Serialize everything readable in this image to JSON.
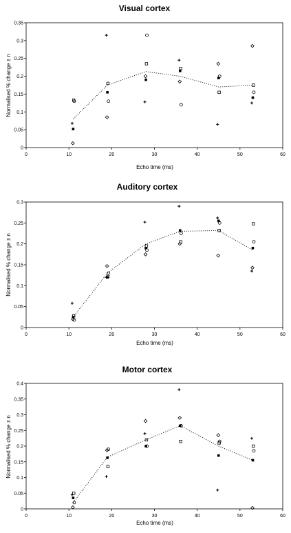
{
  "chart_data": [
    {
      "type": "scatter",
      "title": "Visual cortex",
      "xlabel": "Echo time (ms)",
      "ylabel": "Normalised % change ± n",
      "xlim": [
        0,
        60
      ],
      "ylim": [
        0,
        0.35
      ],
      "x_ticks": [
        "0",
        "10",
        "20",
        "30",
        "40",
        "50",
        "60"
      ],
      "y_ticks": [
        "0",
        "0.05",
        "0.1",
        "0.15",
        "0.2",
        "0.25",
        "0.3",
        "0.35"
      ],
      "grid": false,
      "series": [
        {
          "marker": "plus",
          "points": [
            [
              11,
              0.068
            ],
            [
              19,
              0.315
            ],
            [
              28,
              0.128
            ],
            [
              36,
              0.245
            ],
            [
              45,
              0.065
            ],
            [
              53,
              0.125
            ]
          ]
        },
        {
          "marker": "square",
          "points": [
            [
              11,
              0.052
            ],
            [
              19,
              0.155
            ],
            [
              28,
              0.19
            ],
            [
              36,
              0.215
            ],
            [
              45,
              0.195
            ],
            [
              53,
              0.14
            ]
          ]
        },
        {
          "marker": "circle",
          "points": [
            [
              11,
              0.13
            ],
            [
              19,
              0.13
            ],
            [
              28,
              0.315
            ],
            [
              36,
              0.12
            ],
            [
              45,
              0.2
            ],
            [
              53,
              0.155
            ]
          ]
        },
        {
          "marker": "diamond",
          "points": [
            [
              11,
              0.012
            ],
            [
              19,
              0.085
            ],
            [
              28,
              0.2
            ],
            [
              36,
              0.185
            ],
            [
              45,
              0.235
            ],
            [
              53,
              0.285
            ]
          ]
        },
        {
          "marker": "open-square",
          "points": [
            [
              11,
              0.133
            ],
            [
              19,
              0.18
            ],
            [
              28,
              0.235
            ],
            [
              36,
              0.222
            ],
            [
              45,
              0.155
            ],
            [
              53,
              0.175
            ]
          ]
        }
      ],
      "trend": {
        "style": "dotted",
        "points": [
          [
            11,
            0.08
          ],
          [
            19,
            0.175
          ],
          [
            28,
            0.213
          ],
          [
            36,
            0.2
          ],
          [
            45,
            0.17
          ],
          [
            53,
            0.175
          ]
        ]
      }
    },
    {
      "type": "scatter",
      "title": "Auditory cortex",
      "xlabel": "Echo time (ms)",
      "ylabel": "Normalised % change ± n",
      "xlim": [
        0,
        60
      ],
      "ylim": [
        0,
        0.3
      ],
      "x_ticks": [
        "0",
        "10",
        "20",
        "30",
        "40",
        "50",
        "60"
      ],
      "y_ticks": [
        "0",
        "0.05",
        "0.1",
        "0.15",
        "0.2",
        "0.25",
        "0.3"
      ],
      "grid": false,
      "series": [
        {
          "marker": "plus",
          "points": [
            [
              11,
              0.058
            ],
            [
              19,
              0.12
            ],
            [
              28,
              0.252
            ],
            [
              36,
              0.29
            ],
            [
              45,
              0.262
            ],
            [
              53,
              0.135
            ]
          ]
        },
        {
          "marker": "square",
          "points": [
            [
              11,
              0.025
            ],
            [
              19,
              0.12
            ],
            [
              28,
              0.19
            ],
            [
              36,
              0.232
            ],
            [
              45,
              0.255
            ],
            [
              53,
              0.19
            ]
          ]
        },
        {
          "marker": "circle",
          "points": [
            [
              11,
              0.018
            ],
            [
              19,
              0.13
            ],
            [
              28,
              0.185
            ],
            [
              36,
              0.225
            ],
            [
              45,
              0.25
            ],
            [
              53,
              0.205
            ]
          ]
        },
        {
          "marker": "diamond",
          "points": [
            [
              11,
              0.02
            ],
            [
              19,
              0.147
            ],
            [
              28,
              0.175
            ],
            [
              36,
              0.2
            ],
            [
              45,
              0.172
            ],
            [
              53,
              0.143
            ]
          ]
        },
        {
          "marker": "open-square",
          "points": [
            [
              11,
              0.028
            ],
            [
              19,
              0.122
            ],
            [
              28,
              0.195
            ],
            [
              36,
              0.205
            ],
            [
              45,
              0.232
            ],
            [
              53,
              0.248
            ]
          ]
        }
      ],
      "trend": {
        "style": "dotted",
        "points": [
          [
            11,
            0.025
          ],
          [
            19,
            0.13
          ],
          [
            28,
            0.2
          ],
          [
            36,
            0.23
          ],
          [
            45,
            0.232
          ],
          [
            53,
            0.185
          ]
        ]
      }
    },
    {
      "type": "scatter",
      "title": "Motor cortex",
      "xlabel": "Echo time (ms)",
      "ylabel": "Normalised % change ± n",
      "xlim": [
        0,
        60
      ],
      "ylim": [
        0,
        0.4
      ],
      "x_ticks": [
        "0",
        "10",
        "20",
        "30",
        "40",
        "50",
        "60"
      ],
      "y_ticks": [
        "0",
        "0.05",
        "0.1",
        "0.15",
        "0.2",
        "0.25",
        "0.3",
        "0.35",
        "0.4"
      ],
      "grid": false,
      "series": [
        {
          "marker": "plus",
          "points": [
            [
              11,
              0.045
            ],
            [
              19,
              0.103
            ],
            [
              28,
              0.24
            ],
            [
              36,
              0.38
            ],
            [
              45,
              0.06
            ],
            [
              53,
              0.225
            ]
          ]
        },
        {
          "marker": "square",
          "points": [
            [
              11,
              0.035
            ],
            [
              19,
              0.163
            ],
            [
              28,
              0.2
            ],
            [
              36,
              0.265
            ],
            [
              45,
              0.17
            ],
            [
              53,
              0.155
            ]
          ]
        },
        {
          "marker": "circle",
          "points": [
            [
              11,
              0.02
            ],
            [
              19,
              0.19
            ],
            [
              28,
              0.2
            ],
            [
              36,
              0.265
            ],
            [
              45,
              0.215
            ],
            [
              53,
              0.185
            ]
          ]
        },
        {
          "marker": "diamond",
          "points": [
            [
              11,
              0.005
            ],
            [
              19,
              0.187
            ],
            [
              28,
              0.28
            ],
            [
              36,
              0.29
            ],
            [
              45,
              0.235
            ],
            [
              53,
              0.003
            ]
          ]
        },
        {
          "marker": "open-square",
          "points": [
            [
              11,
              0.05
            ],
            [
              19,
              0.135
            ],
            [
              28,
              0.22
            ],
            [
              36,
              0.215
            ],
            [
              45,
              0.21
            ],
            [
              53,
              0.2
            ]
          ]
        }
      ],
      "trend": {
        "style": "dotted",
        "points": [
          [
            11,
            0.02
          ],
          [
            19,
            0.165
          ],
          [
            28,
            0.22
          ],
          [
            36,
            0.265
          ],
          [
            45,
            0.2
          ],
          [
            53,
            0.155
          ]
        ]
      }
    }
  ]
}
